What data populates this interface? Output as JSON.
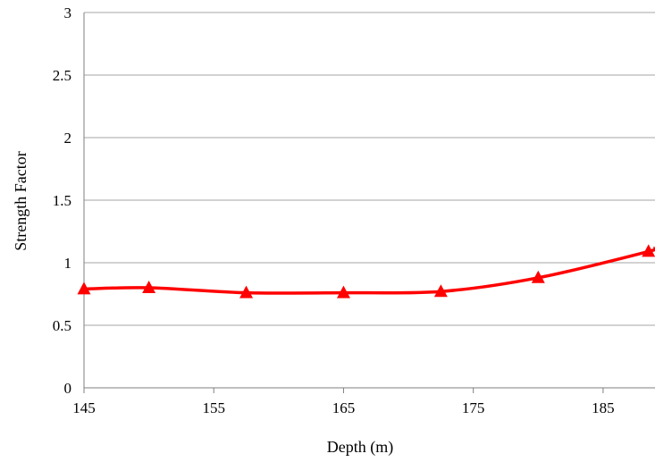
{
  "chart_data": {
    "type": "line",
    "xlabel": "Depth (m)",
    "ylabel": "Strength Factor",
    "xlim": [
      145,
      189
    ],
    "ylim": [
      0,
      3
    ],
    "x_ticks": [
      "145",
      "155",
      "165",
      "175",
      "185"
    ],
    "y_ticks": [
      "0",
      "0.5",
      "1",
      "1.5",
      "2",
      "2.5",
      "3"
    ],
    "grid": "horizontal",
    "legend": "none",
    "series": [
      {
        "color": "#ff0000",
        "marker": "triangle",
        "x": [
          145,
          150,
          157.5,
          165,
          172.5,
          180,
          188.5,
          189
        ],
        "y": [
          0.79,
          0.8,
          0.76,
          0.76,
          0.77,
          0.88,
          1.09,
          1.12
        ],
        "markers": [
          true,
          true,
          true,
          true,
          true,
          true,
          true,
          false
        ]
      }
    ]
  }
}
